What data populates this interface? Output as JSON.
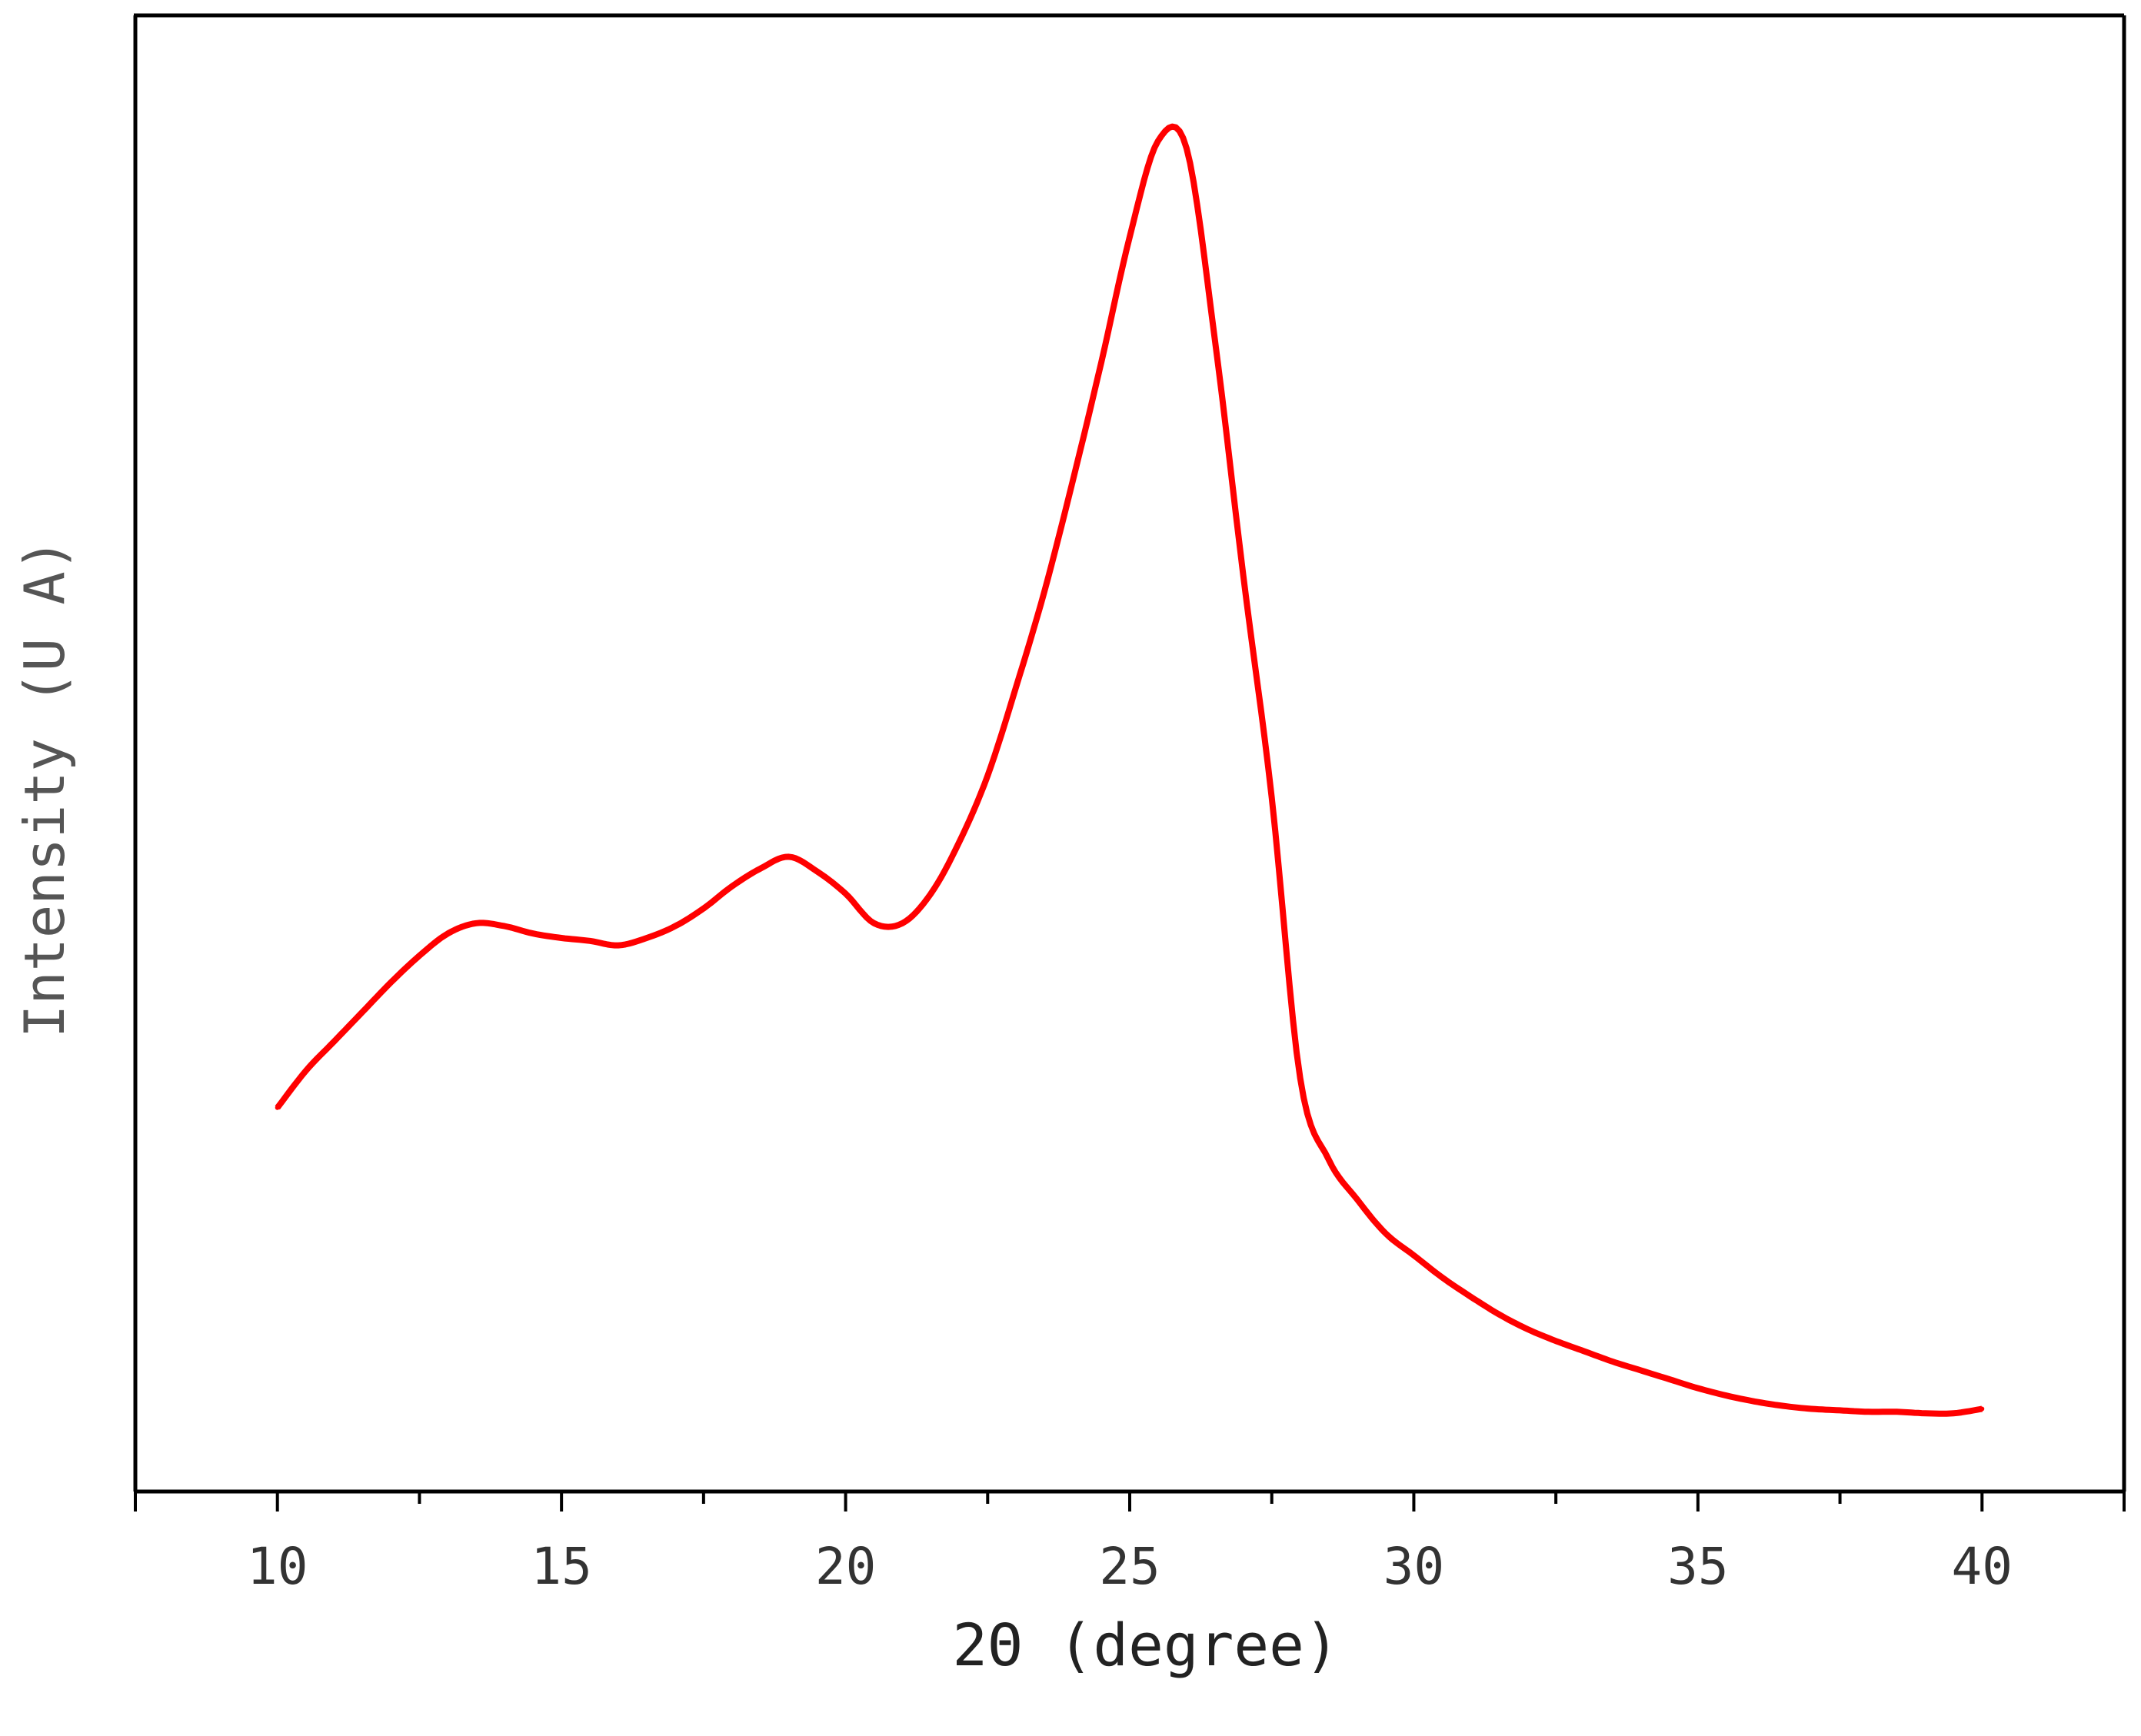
{
  "chart_data": {
    "type": "line",
    "title": "",
    "xlabel": "2Θ (degree)",
    "ylabel": "Intensity (U A)",
    "xlim": [
      7.5,
      42.5
    ],
    "ylim": [
      0,
      100
    ],
    "x_ticks": [
      10,
      15,
      20,
      25,
      30,
      35,
      40
    ],
    "x_tick_labels": [
      "10",
      "15",
      "20",
      "25",
      "30",
      "35",
      "40"
    ],
    "x_minor_ticks": [
      12.5,
      17.5,
      22.5,
      27.5,
      32.5,
      37.5
    ],
    "y_tick_labels_shown": false,
    "grid": false,
    "legend": "none",
    "series": [
      {
        "color": "#ff0000",
        "x": [
          10,
          10.5,
          11,
          11.5,
          12,
          12.5,
          13,
          13.5,
          14,
          14.5,
          15,
          15.5,
          16,
          16.5,
          17,
          17.5,
          18,
          18.5,
          19,
          19.5,
          20,
          20.5,
          21,
          21.5,
          22,
          22.5,
          23,
          23.5,
          24,
          24.5,
          25,
          25.5,
          26,
          26.5,
          27,
          27.5,
          28,
          28.5,
          29,
          29.5,
          30,
          30.5,
          31,
          31.5,
          32,
          32.5,
          33,
          33.5,
          34,
          34.5,
          35,
          35.5,
          36,
          36.5,
          37,
          37.5,
          38,
          38.5,
          39,
          39.5,
          40
        ],
        "y": [
          26.0,
          28.5,
          30.5,
          32.5,
          34.5,
          36.3,
          37.8,
          38.5,
          38.3,
          37.8,
          37.5,
          37.3,
          37.0,
          37.5,
          38.3,
          39.5,
          41.0,
          42.2,
          43.0,
          42.0,
          40.5,
          38.5,
          38.5,
          40.5,
          44.0,
          48.5,
          54.5,
          61.0,
          68.5,
          76.5,
          85.0,
          91.5,
          91.0,
          78.0,
          62.0,
          47.0,
          28.0,
          22.5,
          19.8,
          17.5,
          16.0,
          14.5,
          13.2,
          12.0,
          11.0,
          10.2,
          9.5,
          8.8,
          8.2,
          7.6,
          7.0,
          6.5,
          6.1,
          5.8,
          5.6,
          5.5,
          5.4,
          5.4,
          5.3,
          5.3,
          5.6
        ]
      }
    ]
  }
}
